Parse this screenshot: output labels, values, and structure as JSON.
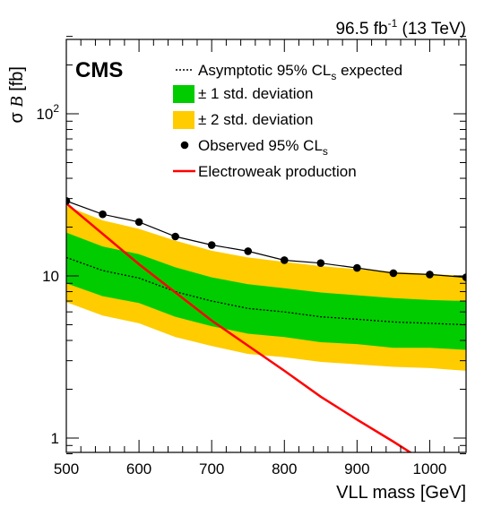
{
  "header": {
    "lumi_value": "96.5 fb",
    "lumi_exp": "-1",
    "lumi_energy": " (13 TeV)"
  },
  "cms_label": "CMS",
  "colors": {
    "band_1sigma": "#00cc00",
    "band_2sigma": "#ffcc00",
    "expected_line": "#000000",
    "observed_line": "#000000",
    "electroweak_line": "#ff0000"
  },
  "chart_data": {
    "type": "line",
    "y_scale": "log",
    "xlim": [
      500,
      1050
    ],
    "ylim": [
      0.8,
      300
    ],
    "xlabel": "VLL mass [GeV]",
    "ylabel": "σ B [fb]",
    "ylabel_parts": {
      "sigma": "σ ",
      "B": "B",
      "unit": " [fb]"
    },
    "x_ticks": [
      500,
      600,
      700,
      800,
      900,
      1000
    ],
    "x_tick_labels": [
      "500",
      "600",
      "700",
      "800",
      "900",
      "1000"
    ],
    "y_ticks": [
      {
        "value": 1,
        "base": "1",
        "exp": ""
      },
      {
        "value": 10,
        "base": "10",
        "exp": ""
      },
      {
        "value": 100,
        "base": "10",
        "exp": "2"
      }
    ],
    "legend_position": "top-right",
    "legend": [
      {
        "type": "dotted-line",
        "label": "Asymptotic 95% CL",
        "sub": "s",
        "suffix": " expected"
      },
      {
        "type": "band-1sigma",
        "label": "± 1 std. deviation"
      },
      {
        "type": "band-2sigma",
        "label": "± 2 std. deviation"
      },
      {
        "type": "marker",
        "label": "Observed 95% CL",
        "sub": "s",
        "suffix": ""
      },
      {
        "type": "red-line",
        "label": "Electroweak production"
      }
    ],
    "x": [
      500,
      550,
      600,
      650,
      700,
      750,
      800,
      850,
      900,
      950,
      1000,
      1050
    ],
    "observed": [
      29,
      24,
      21.5,
      17.5,
      15.5,
      14.2,
      12.5,
      12.0,
      11.2,
      10.4,
      10.2,
      9.8
    ],
    "expected": [
      13,
      10.8,
      9.7,
      8.0,
      7.0,
      6.3,
      6.0,
      5.6,
      5.4,
      5.2,
      5.1,
      5.0
    ],
    "band_1sigma_high": [
      18.5,
      15.2,
      13.6,
      11.3,
      9.8,
      8.9,
      8.4,
      7.9,
      7.6,
      7.3,
      7.1,
      7.0
    ],
    "band_1sigma_low": [
      9.0,
      7.5,
      6.8,
      5.6,
      4.9,
      4.4,
      4.2,
      3.9,
      3.8,
      3.6,
      3.6,
      3.5
    ],
    "band_2sigma_high": [
      27.0,
      22.0,
      19.5,
      16.5,
      14.3,
      13.0,
      12.2,
      11.5,
      11.0,
      10.6,
      10.3,
      10.0
    ],
    "band_2sigma_low": [
      6.9,
      5.7,
      5.1,
      4.2,
      3.7,
      3.3,
      3.15,
      2.95,
      2.85,
      2.75,
      2.7,
      2.6
    ],
    "electroweak": {
      "x": [
        500,
        600,
        700,
        800,
        850,
        900,
        950,
        980
      ],
      "y": [
        28,
        11.8,
        5.3,
        2.6,
        1.8,
        1.3,
        0.95,
        0.78
      ]
    }
  }
}
